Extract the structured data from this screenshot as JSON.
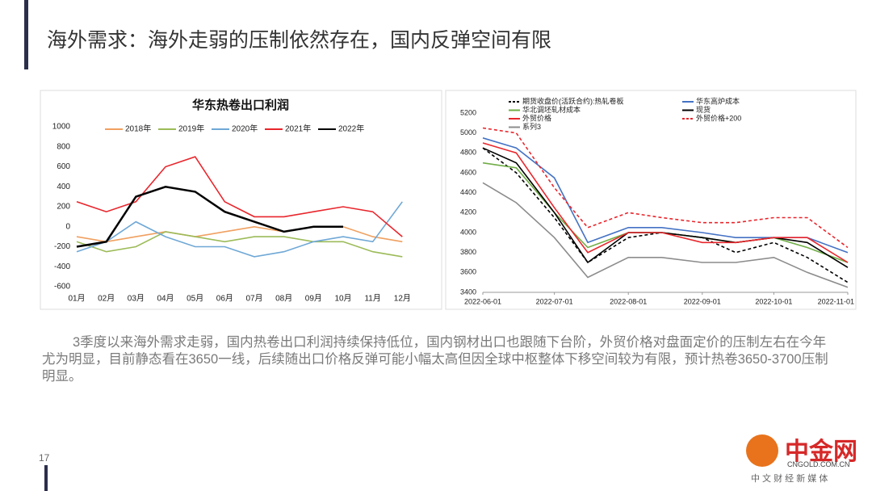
{
  "slide": {
    "title": "海外需求：海外走弱的压制依然存在，国内反弹空间有限",
    "body": "3季度以来海外需求走弱，国内热卷出口利润持续保持低位，国内钢材出口也跟随下台阶，外贸价格对盘面定价的压制左右在今年尤为明显，目前静态看在3650一线，后续随出口价格反弹可能小幅太高但因全球中枢整体下移空间较为有限，预计热卷3650-3700压制明显。",
    "page_number": "17",
    "logo": "中金网",
    "logo_url": "CNGOLD.COM.CN",
    "logo_slogan": "中 文 财 经 新 媒 体"
  },
  "chart_data": [
    {
      "type": "line",
      "title": "华东热卷出口利润",
      "categories": [
        "01月",
        "02月",
        "03月",
        "04月",
        "05月",
        "06月",
        "07月",
        "08月",
        "09月",
        "10月",
        "11月",
        "12月"
      ],
      "ylim": [
        -600,
        1000
      ],
      "yticks": [
        -600,
        -400,
        -200,
        0,
        200,
        400,
        600,
        800,
        1000
      ],
      "series": [
        {
          "name": "2018年",
          "color": "#f0a060",
          "values": [
            -100,
            -150,
            -100,
            -50,
            -100,
            -50,
            0,
            -50,
            0,
            0,
            -100,
            -150
          ]
        },
        {
          "name": "2019年",
          "color": "#9cbb58",
          "values": [
            -150,
            -250,
            -200,
            -50,
            -100,
            -150,
            -100,
            -100,
            -150,
            -150,
            -250,
            -300
          ]
        },
        {
          "name": "2020年",
          "color": "#6fa8d6",
          "values": [
            -250,
            -150,
            50,
            -100,
            -200,
            -200,
            -300,
            -250,
            -150,
            -100,
            -150,
            250
          ]
        },
        {
          "name": "2021年",
          "color": "#e8262c",
          "values": [
            250,
            150,
            250,
            600,
            700,
            250,
            100,
            100,
            150,
            200,
            150,
            -100
          ]
        },
        {
          "name": "2022年",
          "color": "#000000",
          "values": [
            -200,
            -150,
            300,
            400,
            350,
            150,
            50,
            -50,
            0,
            0,
            null,
            null
          ]
        }
      ]
    },
    {
      "type": "line",
      "x": [
        "2022-06-01",
        "2022-06-15",
        "2022-07-01",
        "2022-07-15",
        "2022-08-01",
        "2022-08-15",
        "2022-09-01",
        "2022-09-15",
        "2022-10-01",
        "2022-10-15",
        "2022-11-01"
      ],
      "xlim": [
        "2022-06-01",
        "2022-11-01"
      ],
      "xticks": [
        "2022-06-01",
        "2022-07-01",
        "2022-08-01",
        "2022-09-01",
        "2022-10-01",
        "2022-11-01"
      ],
      "ylim": [
        3400,
        5200
      ],
      "yticks": [
        3400,
        3600,
        3800,
        4000,
        4200,
        4400,
        4600,
        4800,
        5000,
        5200
      ],
      "series": [
        {
          "name": "期货收盘价(活跃合约):热轧卷板",
          "color": "#000000",
          "dash": true,
          "values": [
            4850,
            4600,
            4150,
            3700,
            3950,
            4000,
            3950,
            3800,
            3900,
            3750,
            3500
          ]
        },
        {
          "name": "华东高炉成本",
          "color": "#4472c4",
          "values": [
            4950,
            4850,
            4550,
            3900,
            4050,
            4050,
            4000,
            3950,
            3950,
            3950,
            3800
          ]
        },
        {
          "name": "华北调坯轧材成本",
          "color": "#70ad47",
          "values": [
            4700,
            4650,
            4200,
            3850,
            4000,
            4000,
            3950,
            3900,
            3950,
            3850,
            3700
          ]
        },
        {
          "name": "现货",
          "color": "#000000",
          "values": [
            4850,
            4700,
            4200,
            3700,
            4000,
            4000,
            3950,
            3900,
            3950,
            3900,
            3650
          ]
        },
        {
          "name": "外贸价格",
          "color": "#e8262c",
          "values": [
            4900,
            4800,
            4250,
            3800,
            4000,
            4000,
            3900,
            3900,
            3950,
            3950,
            3700
          ]
        },
        {
          "name": "外贸价格+200",
          "color": "#e8262c",
          "dash": true,
          "values": [
            5050,
            5000,
            4450,
            4050,
            4200,
            4150,
            4100,
            4100,
            4150,
            4150,
            3850
          ]
        },
        {
          "name": "系列3",
          "color": "#8c8c8c",
          "values": [
            4500,
            4300,
            3950,
            3550,
            3750,
            3750,
            3700,
            3700,
            3750,
            3600,
            3450
          ]
        }
      ]
    }
  ]
}
